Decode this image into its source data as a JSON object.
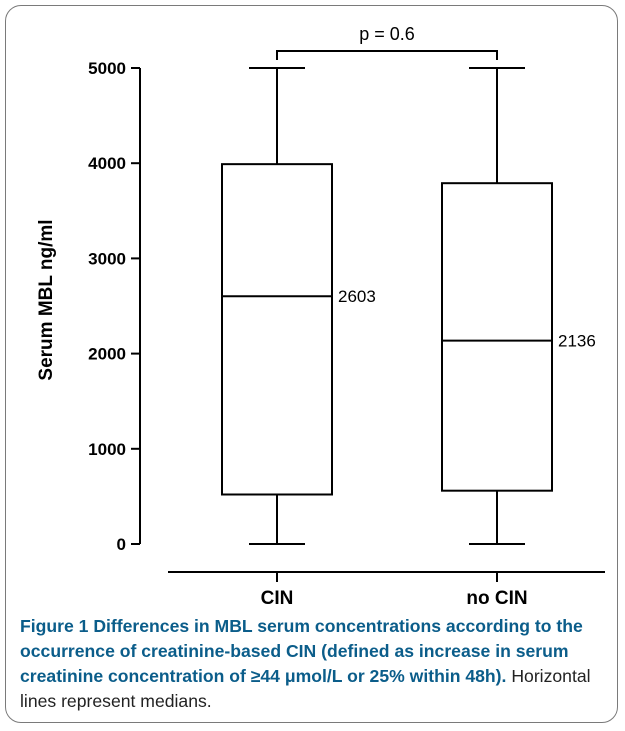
{
  "chart_data": {
    "type": "box",
    "title": "",
    "xlabel": "",
    "ylabel": "Serum MBL ng/ml",
    "ylim": [
      0,
      5000
    ],
    "yticks": [
      "0",
      "1000",
      "2000",
      "3000",
      "4000",
      "5000"
    ],
    "grid": false,
    "legend": "none",
    "categories": [
      "CIN",
      "no CIN"
    ],
    "boxes": [
      {
        "category": "CIN",
        "min": 0,
        "q1": 520,
        "median": 2603,
        "q3": 3990,
        "max": 5000,
        "median_label": "2603"
      },
      {
        "category": "no CIN",
        "min": 0,
        "q1": 560,
        "median": 2136,
        "q3": 3790,
        "max": 5000,
        "median_label": "2136"
      }
    ],
    "annotation": {
      "text": "p = 0.6",
      "between": [
        "CIN",
        "no CIN"
      ]
    }
  },
  "caption": {
    "lead": "Figure 1 Differences in MBL serum concentrations according to the occurrence of creatinine-based CIN (defined as increase in serum creatinine concentration of ≥44 μmol/L or 25% within 48h).",
    "rest": "Horizontal lines represent medians."
  }
}
